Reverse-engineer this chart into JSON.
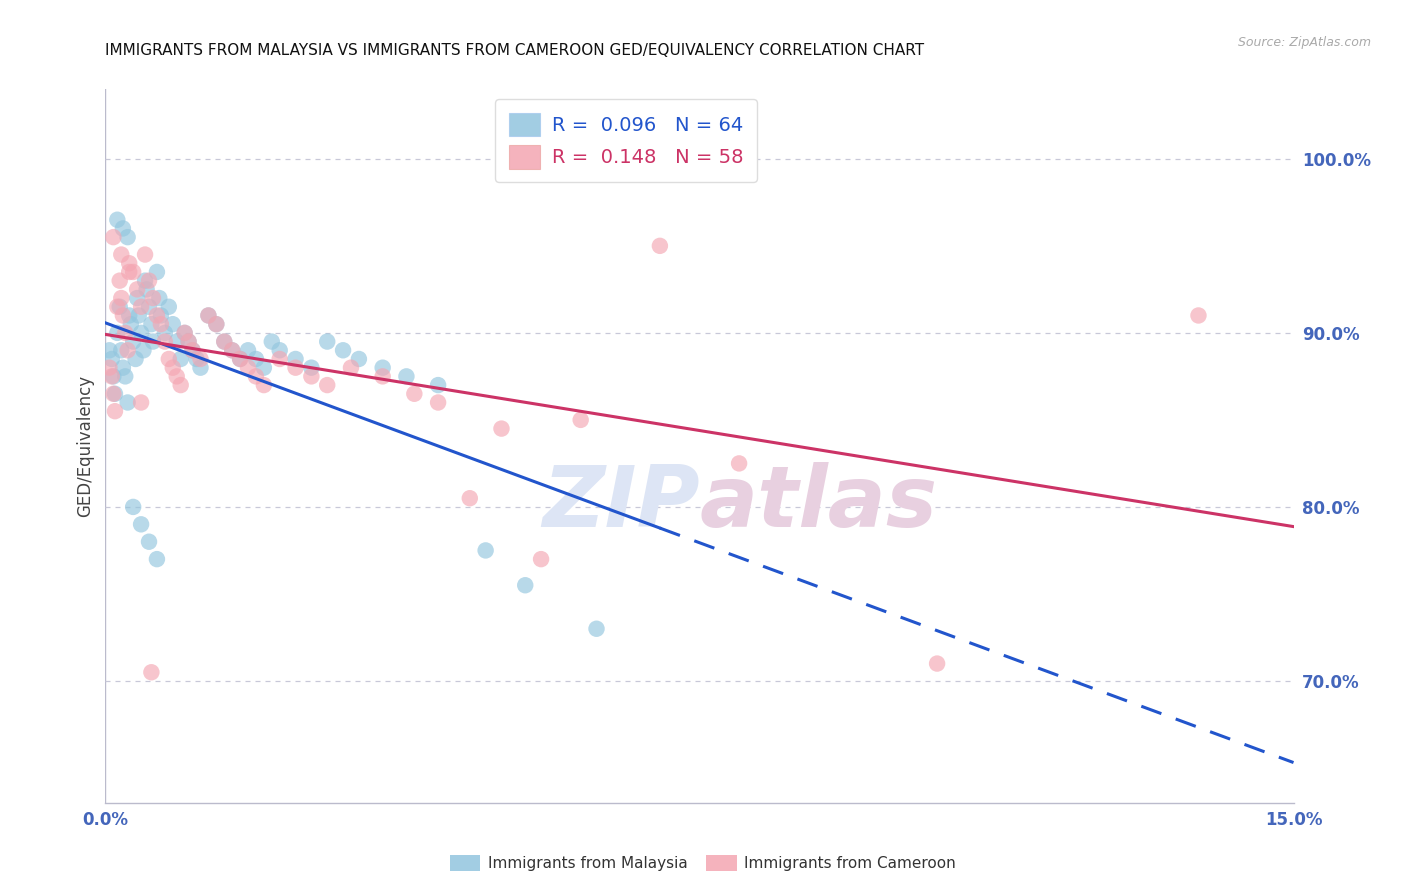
{
  "title": "IMMIGRANTS FROM MALAYSIA VS IMMIGRANTS FROM CAMEROON GED/EQUIVALENCY CORRELATION CHART",
  "source": "Source: ZipAtlas.com",
  "ylabel": "GED/Equivalency",
  "xlim": [
    0.0,
    15.0
  ],
  "ylim": [
    63.0,
    104.0
  ],
  "yticks": [
    70.0,
    80.0,
    90.0,
    100.0
  ],
  "ytick_labels": [
    "70.0%",
    "80.0%",
    "90.0%",
    "100.0%"
  ],
  "malaysia_color": "#92c5de",
  "cameroon_color": "#f4a6b2",
  "malaysia_line_color": "#2255cc",
  "cameroon_line_color": "#cc3366",
  "background_color": "#ffffff",
  "grid_color": "#c8c8d8",
  "axis_label_color": "#4466bb",
  "malaysia_x": [
    0.05,
    0.08,
    0.1,
    0.12,
    0.15,
    0.18,
    0.2,
    0.22,
    0.25,
    0.28,
    0.3,
    0.32,
    0.35,
    0.38,
    0.4,
    0.42,
    0.45,
    0.48,
    0.5,
    0.52,
    0.55,
    0.58,
    0.6,
    0.65,
    0.68,
    0.7,
    0.75,
    0.8,
    0.85,
    0.9,
    0.95,
    1.0,
    1.05,
    1.1,
    1.15,
    1.2,
    1.3,
    1.4,
    1.5,
    1.6,
    1.7,
    1.8,
    1.9,
    2.0,
    2.1,
    2.2,
    2.4,
    2.6,
    2.8,
    3.0,
    3.2,
    3.5,
    3.8,
    4.2,
    4.8,
    5.3,
    6.2,
    0.15,
    0.22,
    0.28,
    0.35,
    0.45,
    0.55,
    0.65
  ],
  "malaysia_y": [
    89.0,
    88.5,
    87.5,
    86.5,
    90.0,
    91.5,
    89.0,
    88.0,
    87.5,
    86.0,
    91.0,
    90.5,
    89.5,
    88.5,
    92.0,
    91.0,
    90.0,
    89.0,
    93.0,
    92.5,
    91.5,
    90.5,
    89.5,
    93.5,
    92.0,
    91.0,
    90.0,
    91.5,
    90.5,
    89.5,
    88.5,
    90.0,
    89.5,
    89.0,
    88.5,
    88.0,
    91.0,
    90.5,
    89.5,
    89.0,
    88.5,
    89.0,
    88.5,
    88.0,
    89.5,
    89.0,
    88.5,
    88.0,
    89.5,
    89.0,
    88.5,
    88.0,
    87.5,
    87.0,
    77.5,
    75.5,
    73.0,
    96.5,
    96.0,
    95.5,
    80.0,
    79.0,
    78.0,
    77.0
  ],
  "cameroon_x": [
    0.05,
    0.08,
    0.1,
    0.12,
    0.15,
    0.18,
    0.2,
    0.22,
    0.25,
    0.28,
    0.3,
    0.35,
    0.4,
    0.45,
    0.5,
    0.55,
    0.6,
    0.65,
    0.7,
    0.75,
    0.8,
    0.85,
    0.9,
    0.95,
    1.0,
    1.05,
    1.1,
    1.2,
    1.3,
    1.4,
    1.5,
    1.6,
    1.7,
    1.8,
    1.9,
    2.0,
    2.2,
    2.4,
    2.6,
    2.8,
    3.1,
    3.5,
    3.9,
    4.2,
    4.6,
    5.0,
    5.5,
    6.0,
    7.0,
    8.0,
    10.5,
    13.8,
    0.1,
    0.2,
    0.3,
    0.45,
    0.58
  ],
  "cameroon_y": [
    88.0,
    87.5,
    86.5,
    85.5,
    91.5,
    93.0,
    92.0,
    91.0,
    90.0,
    89.0,
    94.0,
    93.5,
    92.5,
    91.5,
    94.5,
    93.0,
    92.0,
    91.0,
    90.5,
    89.5,
    88.5,
    88.0,
    87.5,
    87.0,
    90.0,
    89.5,
    89.0,
    88.5,
    91.0,
    90.5,
    89.5,
    89.0,
    88.5,
    88.0,
    87.5,
    87.0,
    88.5,
    88.0,
    87.5,
    87.0,
    88.0,
    87.5,
    86.5,
    86.0,
    80.5,
    84.5,
    77.0,
    85.0,
    95.0,
    82.5,
    71.0,
    91.0,
    95.5,
    94.5,
    93.5,
    86.0,
    70.5
  ],
  "title_fontsize": 11,
  "watermark_color": "#dde5f5",
  "dpi": 100,
  "solid_end_x": 7.0
}
